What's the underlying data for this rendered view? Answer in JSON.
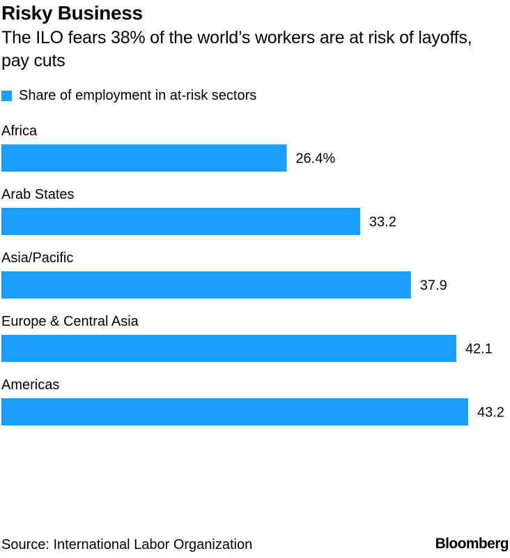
{
  "chart_data": {
    "type": "bar",
    "orientation": "horizontal",
    "title": "Risky Business",
    "subtitle": "The ILO fears 38% of the world’s workers are at risk of layoffs, pay cuts",
    "categories": [
      "Africa",
      "Arab States",
      "Asia/Pacific",
      "Europe & Central Asia",
      "Americas"
    ],
    "series": [
      {
        "name": "Share of employment in at-risk sectors",
        "values": [
          26.4,
          33.2,
          37.9,
          42.1,
          43.2
        ]
      }
    ],
    "data_labels": [
      "26.4%",
      "33.2",
      "37.9",
      "42.1",
      "43.2"
    ],
    "xlim": [
      0,
      43.2
    ],
    "grid": false,
    "legend": "top-left",
    "colors": {
      "bar": "#1a9fff",
      "text": "#000000"
    }
  },
  "footer": {
    "source": "Source: International Labor Organization",
    "brand": "Bloomberg"
  }
}
